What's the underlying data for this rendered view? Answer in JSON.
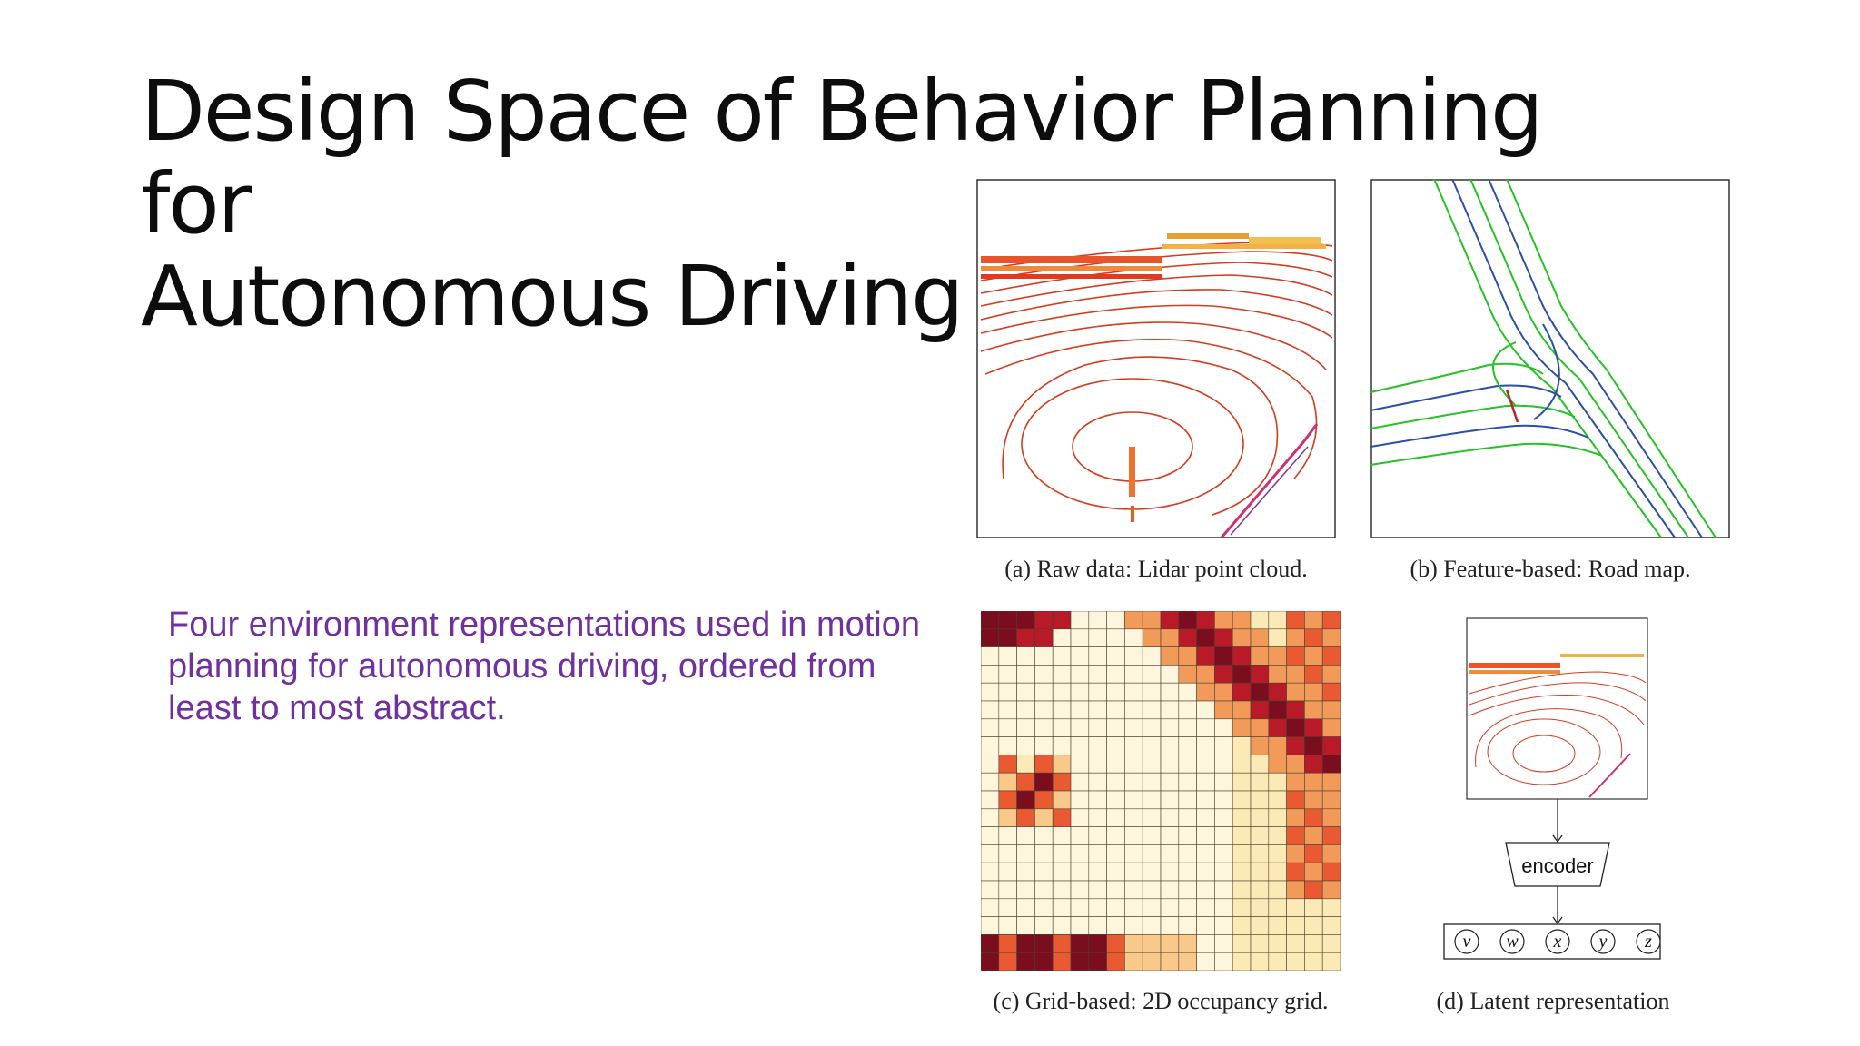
{
  "slide": {
    "title_line1": "Design Space of Behavior Planning for",
    "title_line2": "Autonomous Driving",
    "description": "Four environment representations used in motion planning for autonomous driving, ordered from least to most abstract."
  },
  "figures": {
    "a": {
      "caption": "(a) Raw data: Lidar point cloud."
    },
    "b": {
      "caption": "(b) Feature-based: Road map."
    },
    "c": {
      "caption": "(c) Grid-based: 2D occupancy grid."
    },
    "d": {
      "caption": "(d) Latent representation",
      "encoder_label": "encoder",
      "latent_vars": [
        "v",
        "w",
        "x",
        "y",
        "z"
      ]
    }
  },
  "colors": {
    "title": "#0d0d0d",
    "description": "#7030a0",
    "lidar": "#d83a1e",
    "road_green": "#22c322",
    "road_blue": "#2a4fa8"
  }
}
